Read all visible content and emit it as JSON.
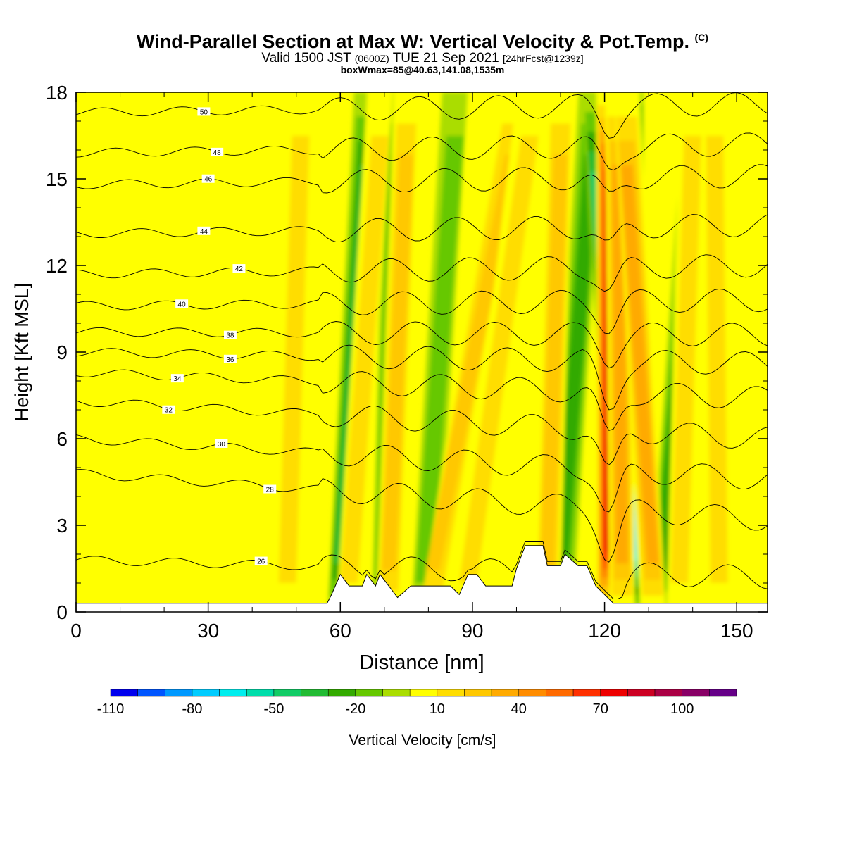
{
  "titles": {
    "main": "Wind-Parallel Section at Max W: Vertical Velocity & Pot.Temp.",
    "main_mark": "(C)",
    "valid_prefix": "Valid 1500 JST",
    "valid_zulu": "(0600Z)",
    "valid_date": "TUE 21 Sep 2021",
    "forecast": "[24hrFcst@1239z]",
    "box": "boxWmax=85@40.63,141.08,1535m"
  },
  "colors": {
    "background_field": "#ffff00",
    "contour": "#000000",
    "terrain": "#ffffff"
  },
  "chart_data": {
    "type": "heatmap",
    "xlabel": "Distance [nm]",
    "ylabel": "Height [Kft MSL]",
    "xlim": [
      0,
      157
    ],
    "ylim": [
      0,
      18
    ],
    "xticks": [
      0,
      30,
      60,
      90,
      120,
      150
    ],
    "yticks": [
      0,
      3,
      6,
      9,
      12,
      15,
      18
    ],
    "grid": false,
    "colorbar": {
      "label": "Vertical Velocity [cm/s]",
      "tick_labels": [
        "-110",
        "-80",
        "-50",
        "-20",
        "10",
        "40",
        "70",
        "100"
      ],
      "levels": [
        -110,
        -100,
        -90,
        -80,
        -70,
        -60,
        -50,
        -40,
        -30,
        -20,
        -10,
        0,
        10,
        20,
        30,
        40,
        50,
        60,
        70,
        80,
        90,
        100,
        110,
        120
      ],
      "colors": [
        "#0000ee",
        "#0055ff",
        "#0099ff",
        "#00ccff",
        "#00eeee",
        "#00ddaa",
        "#11cc66",
        "#22bb33",
        "#33aa00",
        "#66c800",
        "#aadd00",
        "#ffff00",
        "#ffdd00",
        "#ffc800",
        "#ffaa00",
        "#ff8c00",
        "#ff6a00",
        "#ff3000",
        "#ee0000",
        "#cc0022",
        "#aa0044",
        "#880066",
        "#660088"
      ]
    },
    "updraft_bands": [
      {
        "x_bottom": 48,
        "x_top": 51,
        "w": 20
      },
      {
        "x_bottom": 62,
        "x_top": 69,
        "w": 25
      },
      {
        "x_bottom": 71,
        "x_top": 75,
        "w": 30
      },
      {
        "x_bottom": 81,
        "x_top": 99,
        "w": 30
      },
      {
        "x_bottom": 89,
        "x_top": 103,
        "w": 25
      },
      {
        "x_bottom": 107,
        "x_top": 110,
        "w": 30
      },
      {
        "x_bottom": 121,
        "x_top": 121,
        "w": 85
      },
      {
        "x_bottom": 124,
        "x_top": 123,
        "w": 45
      },
      {
        "x_bottom": 131,
        "x_top": 125,
        "w": 40
      },
      {
        "x_bottom": 137,
        "x_top": 140,
        "w": 25
      },
      {
        "x_bottom": 146,
        "x_top": 145,
        "w": 20
      }
    ],
    "downdraft_bands": [
      {
        "x_bottom": 60,
        "x_top": 66,
        "w": -45
      },
      {
        "x_bottom": 70,
        "x_top": 73,
        "w": -30
      },
      {
        "x_bottom": 79,
        "x_top": 86,
        "w": -20
      },
      {
        "x_bottom": 110,
        "x_top": 117,
        "w": -30
      },
      {
        "x_bottom": 124,
        "x_top": 118,
        "w": -55
      },
      {
        "x_bottom": 126,
        "x_top": 126,
        "w": -80
      },
      {
        "x_bottom": 133,
        "x_top": 141,
        "w": -30
      }
    ],
    "terrain_kft": [
      [
        0,
        0.3
      ],
      [
        57,
        0.3
      ],
      [
        58,
        0.6
      ],
      [
        60,
        1.3
      ],
      [
        62,
        0.9
      ],
      [
        65,
        0.9
      ],
      [
        66,
        1.3
      ],
      [
        68,
        0.9
      ],
      [
        69,
        1.3
      ],
      [
        71,
        0.9
      ],
      [
        73,
        0.5
      ],
      [
        76,
        0.9
      ],
      [
        85,
        0.9
      ],
      [
        87,
        0.6
      ],
      [
        89,
        1.3
      ],
      [
        91,
        1.3
      ],
      [
        93,
        0.9
      ],
      [
        99,
        0.9
      ],
      [
        100,
        1.5
      ],
      [
        102,
        2.3
      ],
      [
        106,
        2.3
      ],
      [
        107,
        1.6
      ],
      [
        110,
        1.6
      ],
      [
        111,
        2.0
      ],
      [
        114,
        1.6
      ],
      [
        116,
        1.6
      ],
      [
        118,
        0.9
      ],
      [
        120,
        0.6
      ],
      [
        122,
        0.3
      ],
      [
        157,
        0.3
      ]
    ],
    "theta_contours": [
      {
        "value": 26,
        "y_left": 1.8,
        "y_right": 1.2,
        "label_x": 42
      },
      {
        "value": 28,
        "y_left": 4.8,
        "y_right": 3.2,
        "label_x": 44
      },
      {
        "value": 30,
        "y_left": 6.0,
        "y_right": 4.6,
        "label_x": 33
      },
      {
        "value": 32,
        "y_left": 7.3,
        "y_right": 6.0,
        "label_x": 21
      },
      {
        "value": 34,
        "y_left": 8.3,
        "y_right": 7.4,
        "label_x": 23
      },
      {
        "value": 36,
        "y_left": 9.0,
        "y_right": 8.6,
        "label_x": 35
      },
      {
        "value": 38,
        "y_left": 9.7,
        "y_right": 9.6,
        "label_x": 35
      },
      {
        "value": 40,
        "y_left": 10.6,
        "y_right": 10.8,
        "label_x": 24
      },
      {
        "value": 42,
        "y_left": 11.7,
        "y_right": 12.0,
        "label_x": 37
      },
      {
        "value": 44,
        "y_left": 13.1,
        "y_right": 13.4,
        "label_x": 29
      },
      {
        "value": 46,
        "y_left": 14.8,
        "y_right": 15.1,
        "label_x": 30
      },
      {
        "value": 48,
        "y_left": 15.9,
        "y_right": 16.2,
        "label_x": 32
      },
      {
        "value": 50,
        "y_left": 17.3,
        "y_right": 17.6,
        "label_x": 29
      }
    ]
  }
}
